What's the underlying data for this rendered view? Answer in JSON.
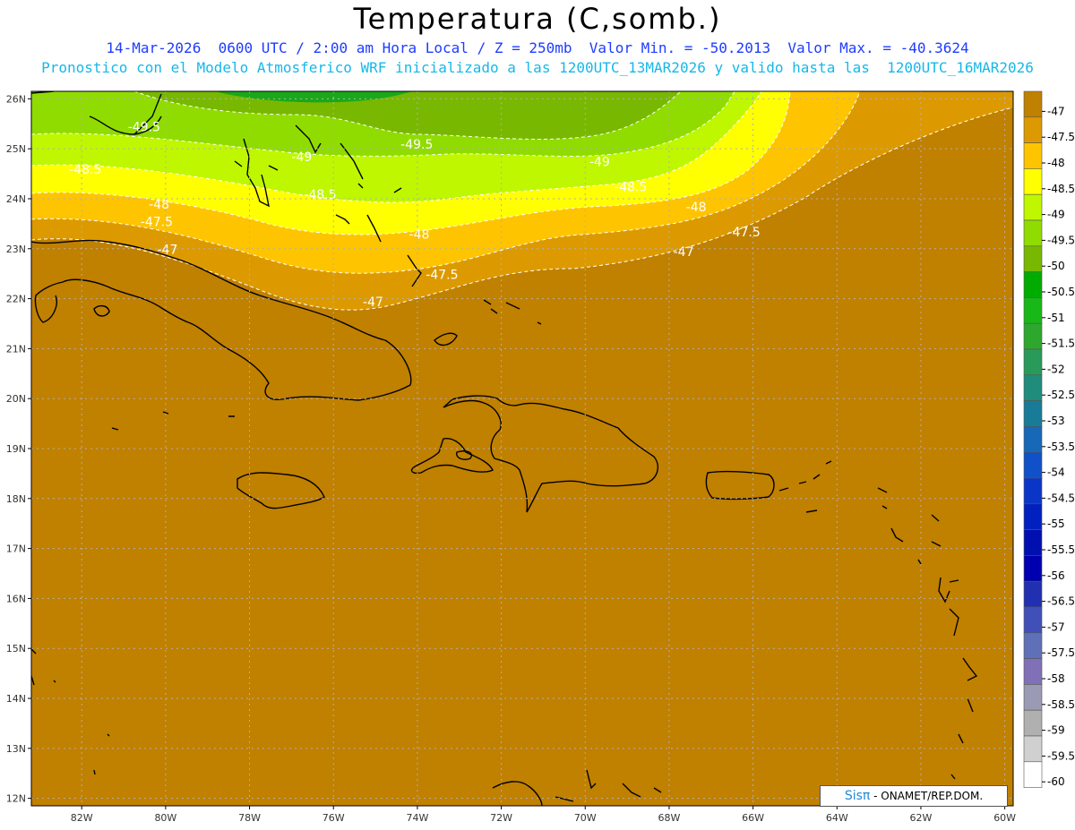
{
  "header": {
    "title": "Temperatura (C,somb.)",
    "line1": "14-Mar-2026  0600 UTC / 2:00 am Hora Local / Z = 250mb  Valor Min. = -50.2013  Valor Max. = -40.3624",
    "line2": "Pronostico con el Modelo Atmosferico WRF inicializado a las 1200UTC_13MAR2026 y valido hasta las  1200UTC_16MAR2026"
  },
  "axes": {
    "lat_labels": [
      "26N",
      "25N",
      "24N",
      "23N",
      "22N",
      "21N",
      "20N",
      "19N",
      "18N",
      "17N",
      "16N",
      "15N",
      "14N",
      "13N",
      "12N"
    ],
    "lon_labels": [
      "82W",
      "80W",
      "78W",
      "76W",
      "74W",
      "72W",
      "70W",
      "68W",
      "66W",
      "64W",
      "62W",
      "60W"
    ]
  },
  "colorbar": {
    "labels": [
      "-47",
      "-47.5",
      "-48",
      "-48.5",
      "-49",
      "-49.5",
      "-50",
      "-50.5",
      "-51",
      "-51.5",
      "-52",
      "-52.5",
      "-53",
      "-53.5",
      "-54",
      "-54.5",
      "-55",
      "-55.5",
      "-56",
      "-56.5",
      "-57",
      "-57.5",
      "-58",
      "-58.5",
      "-59",
      "-59.5",
      "-60"
    ],
    "colors": [
      "#c08000",
      "#dc9a00",
      "#ffc400",
      "#ffff00",
      "#bff700",
      "#90dc00",
      "#78b800",
      "#00ac00",
      "#18b818",
      "#2da82d",
      "#2a9a5a",
      "#208c7c",
      "#187c98",
      "#1868b8",
      "#1050c8",
      "#0a36c8",
      "#0020c0",
      "#0010b0",
      "#0000b0",
      "#2030b0",
      "#4050b8",
      "#6070b8",
      "#8070b8",
      "#9a9ab4",
      "#b0b0b0",
      "#d0d0d0",
      "#ffffff"
    ]
  },
  "contours": {
    "fill_colors": {
      "b47": "#c08000",
      "b475": "#dc9a00",
      "b48": "#ffc400",
      "b485": "#ffff00",
      "b49": "#bff700",
      "b495": "#90dc00",
      "b50": "#78b800",
      "b505": "#1aa81a"
    },
    "labels": [
      {
        "text": "-49.5",
        "lon": -80.9,
        "lat": 25.35
      },
      {
        "text": "-49",
        "lon": -77.0,
        "lat": 24.75
      },
      {
        "text": "-49.5",
        "lon": -74.4,
        "lat": 25.0
      },
      {
        "text": "-49",
        "lon": -69.9,
        "lat": 24.65
      },
      {
        "text": "-48.5",
        "lon": -82.3,
        "lat": 24.5
      },
      {
        "text": "-48.5",
        "lon": -76.7,
        "lat": 24.0
      },
      {
        "text": "-48.5",
        "lon": -69.3,
        "lat": 24.15
      },
      {
        "text": "-48",
        "lon": -80.4,
        "lat": 23.8
      },
      {
        "text": "-48",
        "lon": -67.6,
        "lat": 23.75
      },
      {
        "text": "-47.5",
        "lon": -80.6,
        "lat": 23.45
      },
      {
        "text": "-48",
        "lon": -74.2,
        "lat": 23.2
      },
      {
        "text": "-47.5",
        "lon": -66.6,
        "lat": 23.25
      },
      {
        "text": "-47",
        "lon": -80.2,
        "lat": 22.9
      },
      {
        "text": "-47.5",
        "lon": -73.8,
        "lat": 22.4
      },
      {
        "text": "-47",
        "lon": -67.9,
        "lat": 22.85
      },
      {
        "text": "-47",
        "lon": -75.3,
        "lat": 21.85
      }
    ]
  },
  "credit": {
    "brand": "Sisπ",
    "text": " - ONAMET/REP.DOM."
  }
}
